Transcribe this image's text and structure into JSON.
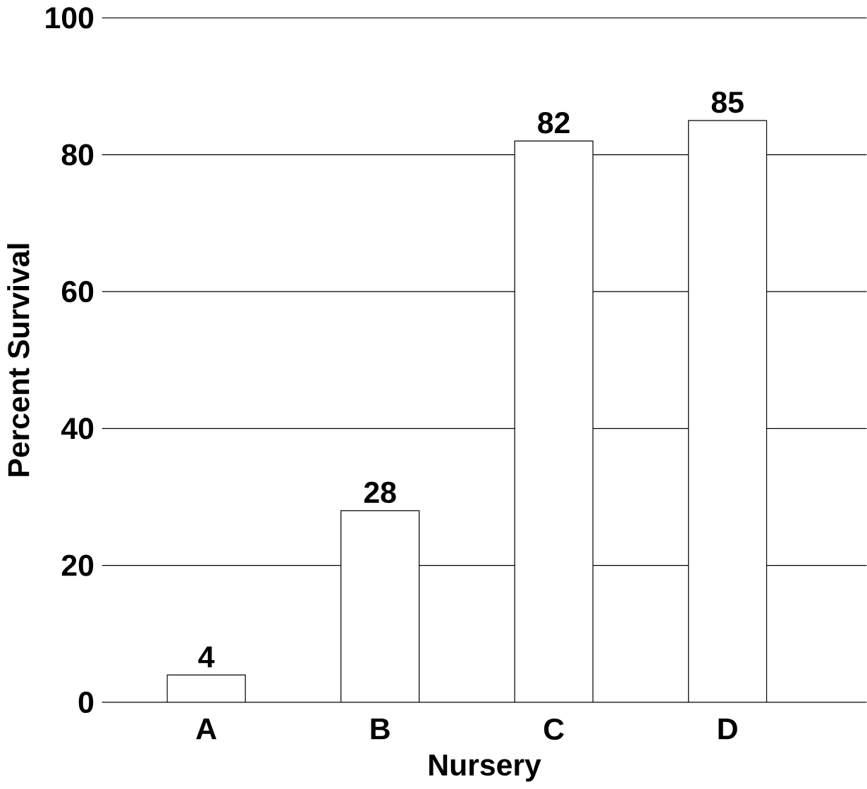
{
  "chart_data": {
    "type": "bar",
    "xlabel": "Nursery",
    "ylabel": "Percent Survival",
    "categories": [
      "A",
      "B",
      "C",
      "D"
    ],
    "values": [
      4,
      28,
      82,
      85
    ],
    "color": "#ffffff",
    "ylim": [
      0,
      100
    ],
    "yticks": [
      0,
      20,
      40,
      60,
      80,
      100
    ],
    "grid": "y",
    "data_labels": true
  }
}
